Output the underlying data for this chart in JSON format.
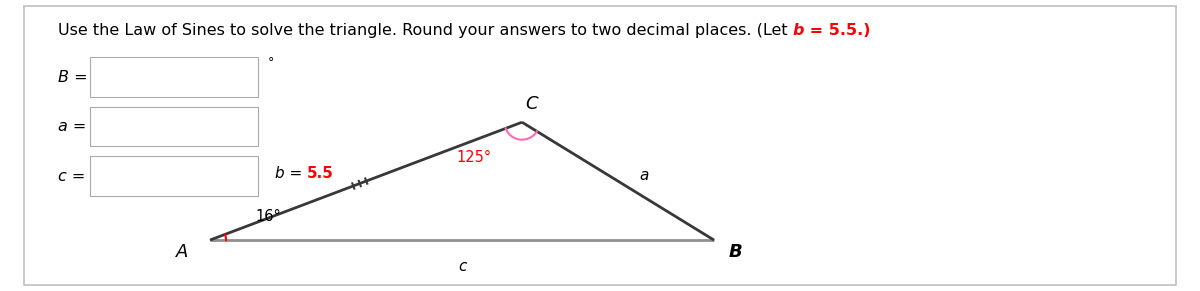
{
  "bg_color": "#ffffff",
  "border_color": "#aaaaaa",
  "title_normal": "Use the Law of Sines to solve the triangle. Round your answers to two decimal places. (Let ",
  "title_b": "b",
  "title_eq": " = 5.5.)",
  "input_labels": [
    "B =",
    "a =",
    "c ="
  ],
  "triangle": {
    "A": [
      0.175,
      0.175
    ],
    "B": [
      0.595,
      0.175
    ],
    "C": [
      0.435,
      0.58
    ]
  },
  "label_A": "A",
  "label_B": "B",
  "label_C": "C",
  "label_a": "a",
  "label_b_normal": "b",
  "label_b_eq": " = ",
  "label_b_val": "5.5",
  "label_c": "c",
  "angle_A_label": "16°",
  "angle_C_label": "125°",
  "color_black": "#000000",
  "color_red": "#ff0000",
  "color_pink": "#ff69b4",
  "color_gray": "#808080",
  "color_darkgray": "#404040",
  "color_border": "#c0c0c0"
}
